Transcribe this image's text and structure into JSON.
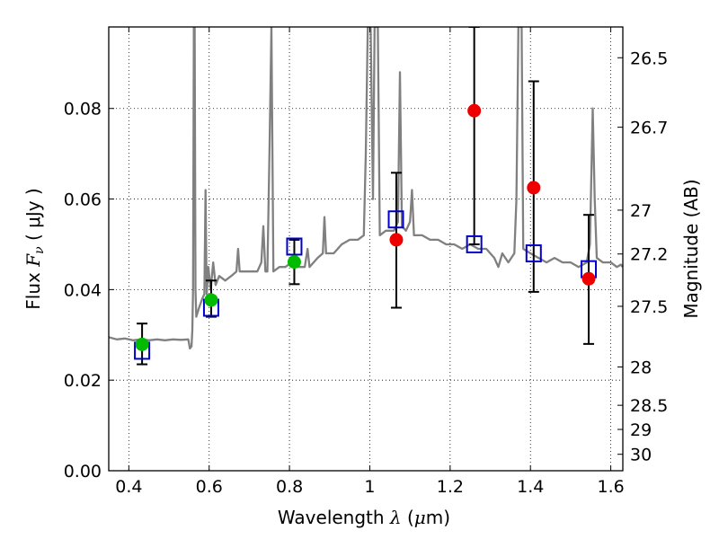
{
  "chart_data": {
    "type": "scatter",
    "xlabel": {
      "prefix": "Wavelength  ",
      "symbol": "λ",
      "unit_open": " (",
      "unit_mu": "μ",
      "unit_rest": "m)"
    },
    "ylabel": {
      "prefix": "Flux  ",
      "symbol": "F",
      "subscript": "ν",
      "unit": "  ( μJy )"
    },
    "y2label": "Magnitude (AB)",
    "xlim": [
      0.35,
      1.63
    ],
    "ylim": [
      0.0,
      0.098
    ],
    "grid": true,
    "x_ticks": [
      0.4,
      0.6,
      0.8,
      1.0,
      1.2,
      1.4,
      1.6
    ],
    "x_tick_labels": [
      "0.4",
      "0.6",
      "0.8",
      "1",
      "1.2",
      "1.4",
      "1.6"
    ],
    "y_ticks": [
      0.0,
      0.02,
      0.04,
      0.06,
      0.08
    ],
    "y_tick_labels": [
      "0.00",
      "0.02",
      "0.04",
      "0.06",
      "0.08"
    ],
    "y2_ticks": [
      {
        "label": "26.5",
        "mag": 26.5
      },
      {
        "label": "26.7",
        "mag": 26.7
      },
      {
        "label": "27",
        "mag": 27.0
      },
      {
        "label": "27.2",
        "mag": 27.2
      },
      {
        "label": "27.5",
        "mag": 27.5
      },
      {
        "label": "28",
        "mag": 28.0
      },
      {
        "label": "28.5",
        "mag": 28.5
      },
      {
        "label": "29",
        "mag": 29.0
      },
      {
        "label": "30",
        "mag": 30.0
      }
    ],
    "colors": {
      "model": "#808080",
      "model_photometry": "#0000cc",
      "detections_green": "#00bb00",
      "detections_red": "#ee0000",
      "errorbar": "#000000"
    },
    "series": [
      {
        "kind": "line",
        "role": "model spectrum",
        "points": [
          [
            0.35,
            0.0295
          ],
          [
            0.37,
            0.029
          ],
          [
            0.39,
            0.0292
          ],
          [
            0.41,
            0.0288
          ],
          [
            0.43,
            0.029
          ],
          [
            0.45,
            0.0288
          ],
          [
            0.47,
            0.029
          ],
          [
            0.49,
            0.0288
          ],
          [
            0.51,
            0.029
          ],
          [
            0.53,
            0.0289
          ],
          [
            0.548,
            0.029
          ],
          [
            0.552,
            0.027
          ],
          [
            0.556,
            0.0275
          ],
          [
            0.558,
            0.031
          ],
          [
            0.56,
            0.04
          ],
          [
            0.562,
            0.098
          ],
          [
            0.564,
            0.098
          ],
          [
            0.566,
            0.04
          ],
          [
            0.568,
            0.034
          ],
          [
            0.575,
            0.036
          ],
          [
            0.583,
            0.038
          ],
          [
            0.588,
            0.039
          ],
          [
            0.591,
            0.062
          ],
          [
            0.594,
            0.039
          ],
          [
            0.598,
            0.045
          ],
          [
            0.604,
            0.04
          ],
          [
            0.61,
            0.046
          ],
          [
            0.616,
            0.041
          ],
          [
            0.625,
            0.043
          ],
          [
            0.64,
            0.042
          ],
          [
            0.655,
            0.043
          ],
          [
            0.668,
            0.044
          ],
          [
            0.672,
            0.049
          ],
          [
            0.676,
            0.044
          ],
          [
            0.7,
            0.044
          ],
          [
            0.72,
            0.044
          ],
          [
            0.73,
            0.046
          ],
          [
            0.735,
            0.054
          ],
          [
            0.74,
            0.044
          ],
          [
            0.745,
            0.044
          ],
          [
            0.75,
            0.07
          ],
          [
            0.755,
            0.098
          ],
          [
            0.76,
            0.044
          ],
          [
            0.775,
            0.045
          ],
          [
            0.79,
            0.045
          ],
          [
            0.805,
            0.046
          ],
          [
            0.82,
            0.045
          ],
          [
            0.838,
            0.045
          ],
          [
            0.845,
            0.049
          ],
          [
            0.85,
            0.045
          ],
          [
            0.87,
            0.047
          ],
          [
            0.883,
            0.048
          ],
          [
            0.887,
            0.056
          ],
          [
            0.891,
            0.048
          ],
          [
            0.91,
            0.048
          ],
          [
            0.93,
            0.05
          ],
          [
            0.95,
            0.051
          ],
          [
            0.97,
            0.051
          ],
          [
            0.985,
            0.052
          ],
          [
            0.99,
            0.07
          ],
          [
            0.995,
            0.098
          ],
          [
            1.002,
            0.098
          ],
          [
            1.008,
            0.06
          ],
          [
            1.012,
            0.098
          ],
          [
            1.02,
            0.098
          ],
          [
            1.025,
            0.052
          ],
          [
            1.04,
            0.053
          ],
          [
            1.06,
            0.053
          ],
          [
            1.07,
            0.055
          ],
          [
            1.075,
            0.088
          ],
          [
            1.08,
            0.054
          ],
          [
            1.09,
            0.053
          ],
          [
            1.1,
            0.055
          ],
          [
            1.105,
            0.062
          ],
          [
            1.11,
            0.052
          ],
          [
            1.13,
            0.052
          ],
          [
            1.15,
            0.051
          ],
          [
            1.17,
            0.051
          ],
          [
            1.19,
            0.05
          ],
          [
            1.21,
            0.05
          ],
          [
            1.23,
            0.049
          ],
          [
            1.25,
            0.05
          ],
          [
            1.27,
            0.049
          ],
          [
            1.29,
            0.049
          ],
          [
            1.3,
            0.048
          ],
          [
            1.31,
            0.047
          ],
          [
            1.32,
            0.045
          ],
          [
            1.33,
            0.048
          ],
          [
            1.345,
            0.046
          ],
          [
            1.36,
            0.048
          ],
          [
            1.365,
            0.06
          ],
          [
            1.37,
            0.098
          ],
          [
            1.378,
            0.098
          ],
          [
            1.382,
            0.049
          ],
          [
            1.4,
            0.048
          ],
          [
            1.42,
            0.047
          ],
          [
            1.44,
            0.046
          ],
          [
            1.46,
            0.047
          ],
          [
            1.48,
            0.046
          ],
          [
            1.5,
            0.046
          ],
          [
            1.52,
            0.045
          ],
          [
            1.54,
            0.046
          ],
          [
            1.548,
            0.05
          ],
          [
            1.555,
            0.08
          ],
          [
            1.56,
            0.06
          ],
          [
            1.565,
            0.047
          ],
          [
            1.58,
            0.046
          ],
          [
            1.6,
            0.046
          ],
          [
            1.615,
            0.045
          ],
          [
            1.625,
            0.0455
          ],
          [
            1.63,
            0.045
          ]
        ]
      },
      {
        "kind": "scatter",
        "role": "model photometry",
        "marker": "open-square",
        "x": [
          0.433,
          0.605,
          0.812,
          1.065,
          1.26,
          1.408,
          1.545
        ],
        "y": [
          0.0265,
          0.036,
          0.0495,
          0.0555,
          0.05,
          0.048,
          0.0445
        ]
      },
      {
        "kind": "errorbar",
        "role": "observed flux",
        "marker": "filled-circle",
        "points": [
          {
            "x": 0.433,
            "y": 0.0279,
            "lo": 0.0235,
            "hi": 0.0325,
            "color": "green"
          },
          {
            "x": 0.605,
            "y": 0.0377,
            "lo": 0.034,
            "hi": 0.042,
            "color": "green"
          },
          {
            "x": 0.812,
            "y": 0.0461,
            "lo": 0.0412,
            "hi": 0.051,
            "color": "green"
          },
          {
            "x": 1.066,
            "y": 0.051,
            "lo": 0.036,
            "hi": 0.0658,
            "color": "red"
          },
          {
            "x": 1.26,
            "y": 0.0795,
            "lo": 0.05,
            "hi": 0.098,
            "color": "red"
          },
          {
            "x": 1.408,
            "y": 0.0625,
            "lo": 0.0395,
            "hi": 0.086,
            "color": "red"
          },
          {
            "x": 1.545,
            "y": 0.0424,
            "lo": 0.028,
            "hi": 0.0565,
            "color": "red"
          }
        ]
      }
    ]
  }
}
